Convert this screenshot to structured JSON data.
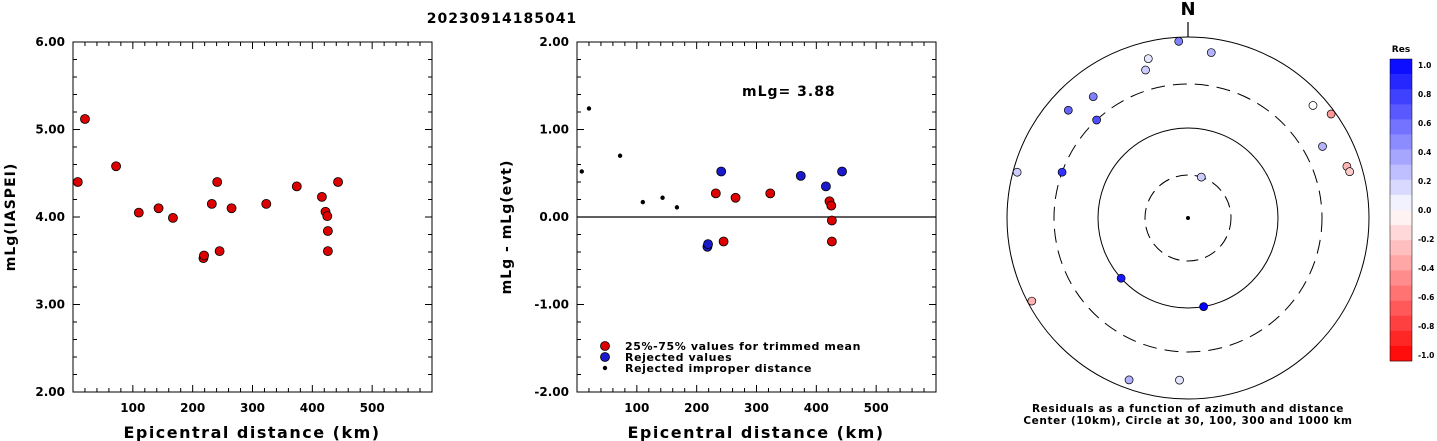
{
  "title": "20230914185041",
  "chart_data": [
    {
      "type": "scatter",
      "xlabel": "Epicentral distance (km)",
      "ylabel": "mLg(IASPEI)",
      "xlim": [
        0,
        600
      ],
      "ylim": [
        2.0,
        6.0
      ],
      "xticks": [
        "100",
        "200",
        "300",
        "400",
        "500"
      ],
      "yticks": [
        "2.00",
        "3.00",
        "4.00",
        "5.00",
        "6.00"
      ],
      "marker_color": "#dd0000",
      "points": [
        [
          8,
          4.4
        ],
        [
          20,
          5.12
        ],
        [
          72,
          4.58
        ],
        [
          110,
          4.05
        ],
        [
          143,
          4.1
        ],
        [
          167,
          3.99
        ],
        [
          218,
          3.53
        ],
        [
          219,
          3.56
        ],
        [
          232,
          4.15
        ],
        [
          241,
          4.4
        ],
        [
          245,
          3.61
        ],
        [
          265,
          4.1
        ],
        [
          323,
          4.15
        ],
        [
          374,
          4.35
        ],
        [
          416,
          4.23
        ],
        [
          422,
          4.06
        ],
        [
          425,
          4.01
        ],
        [
          426,
          3.84
        ],
        [
          426,
          3.61
        ],
        [
          443,
          4.4
        ]
      ]
    },
    {
      "type": "scatter",
      "xlabel": "Epicentral distance (km)",
      "ylabel": "mLg - mLg(evt)",
      "xlim": [
        0,
        600
      ],
      "ylim": [
        -2.0,
        2.0
      ],
      "xticks": [
        "100",
        "200",
        "300",
        "400",
        "500"
      ],
      "yticks": [
        "-2.00",
        "-1.00",
        "0.00",
        "1.00",
        "2.00"
      ],
      "annotation": "mLg= 3.88",
      "legend": [
        {
          "label": "25%-75% values for trimmed mean",
          "color": "#dd0000",
          "marker": "circle"
        },
        {
          "label": "Rejected values",
          "color": "#1a1acc",
          "marker": "circle"
        },
        {
          "label": "Rejected improper distance",
          "color": "#000000",
          "marker": "dot"
        }
      ],
      "series": [
        {
          "points": [
            [
              232,
              0.27
            ],
            [
              245,
              -0.28
            ],
            [
              265,
              0.22
            ],
            [
              323,
              0.27
            ],
            [
              422,
              0.18
            ],
            [
              425,
              0.13
            ],
            [
              426,
              -0.04
            ],
            [
              426,
              -0.28
            ]
          ]
        },
        {
          "points": [
            [
              218,
              -0.34
            ],
            [
              219,
              -0.31
            ],
            [
              241,
              0.52
            ],
            [
              374,
              0.47
            ],
            [
              416,
              0.35
            ],
            [
              443,
              0.52
            ]
          ]
        },
        {
          "points": [
            [
              8,
              0.52
            ],
            [
              20,
              1.24
            ],
            [
              72,
              0.7
            ],
            [
              110,
              0.17
            ],
            [
              143,
              0.22
            ],
            [
              167,
              0.11
            ]
          ]
        }
      ]
    },
    {
      "type": "polar-scatter",
      "north_label": "N",
      "caption_line1": "Residuals as a function of azimuth and distance",
      "caption_line2": "Center (10km), Circle at 30, 100, 300 and 1000 km",
      "colorbar_title": "Res",
      "colorbar_ticks": [
        "1.0",
        "0.8",
        "0.6",
        "0.4",
        "0.2",
        "0.0",
        "-0.2",
        "-0.4",
        "-0.6",
        "-0.8",
        "-1.0"
      ],
      "points": [
        {
          "azimuth": 18,
          "distance_km": 30,
          "residual": 0.2
        },
        {
          "azimuth": 170,
          "distance_km": 100,
          "residual": 1.0
        },
        {
          "azimuth": 228,
          "distance_km": 100,
          "residual": 0.9
        },
        {
          "azimuth": 290,
          "distance_km": 300,
          "residual": 0.8
        },
        {
          "azimuth": 317,
          "distance_km": 300,
          "residual": 0.7
        },
        {
          "azimuth": 322,
          "distance_km": 500,
          "residual": 0.5
        },
        {
          "azimuth": 312,
          "distance_km": 600,
          "residual": 0.6
        },
        {
          "azimuth": 285,
          "distance_km": 900,
          "residual": 0.2
        },
        {
          "azimuth": 344,
          "distance_km": 500,
          "residual": 0.2
        },
        {
          "azimuth": 346,
          "distance_km": 650,
          "residual": 0.1
        },
        {
          "azimuth": 357,
          "distance_km": 900,
          "residual": 0.5
        },
        {
          "azimuth": 8,
          "distance_km": 700,
          "residual": 0.3
        },
        {
          "azimuth": 48,
          "distance_km": 720,
          "residual": 0.0
        },
        {
          "azimuth": 54,
          "distance_km": 900,
          "residual": -0.4
        },
        {
          "azimuth": 62,
          "distance_km": 480,
          "residual": 0.3
        },
        {
          "azimuth": 72,
          "distance_km": 700,
          "residual": -0.3
        },
        {
          "azimuth": 74,
          "distance_km": 720,
          "residual": -0.2
        },
        {
          "azimuth": 242,
          "distance_km": 900,
          "residual": -0.3
        },
        {
          "azimuth": 183,
          "distance_km": 620,
          "residual": 0.1
        },
        {
          "azimuth": 200,
          "distance_km": 800,
          "residual": 0.3
        }
      ]
    }
  ]
}
